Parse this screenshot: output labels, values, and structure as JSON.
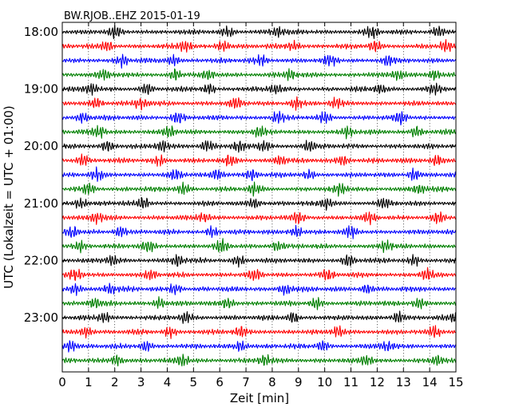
{
  "chart_data": {
    "type": "line",
    "title": "BW.RJOB..EHZ 2015-01-19",
    "xlabel": "Zeit  [min]",
    "ylabel": "UTC (Lokalzeit = UTC + 01:00)",
    "xlim": [
      0,
      15
    ],
    "x_ticks": [
      0,
      1,
      2,
      3,
      4,
      5,
      6,
      7,
      8,
      9,
      10,
      11,
      12,
      13,
      14,
      15
    ],
    "y_tick_labels": [
      "18:00",
      "19:00",
      "20:00",
      "21:00",
      "22:00",
      "23:00"
    ],
    "grid": "vertical dotted at each minute",
    "trace_colors": [
      "#000000",
      "#ff0000",
      "#0000ff",
      "#008000"
    ],
    "trace_count": 24,
    "trace_interval_minutes": 15,
    "start_time": "18:00",
    "end_time": "23:45",
    "event_minutes": [
      [
        2.0,
        6.3,
        8.2,
        11.8,
        14.3
      ],
      [
        1.7,
        4.7,
        6.1,
        8.8,
        11.9,
        14.6
      ],
      [
        2.3,
        4.2,
        7.6,
        10.2,
        12.4
      ],
      [
        1.6,
        4.3,
        5.6,
        8.7,
        12.8,
        14.2
      ],
      [
        1.1,
        3.2,
        5.6,
        8.1,
        12.1,
        14.2
      ],
      [
        1.3,
        3.0,
        6.6,
        8.9,
        10.4
      ],
      [
        0.8,
        4.4,
        8.2,
        10.0,
        12.9
      ],
      [
        1.4,
        4.1,
        7.5,
        10.9,
        13.5
      ],
      [
        1.7,
        3.8,
        5.5,
        6.7,
        7.7,
        9.4
      ],
      [
        0.8,
        3.7,
        6.4,
        8.3,
        10.7,
        14.3
      ],
      [
        1.3,
        4.3,
        5.9,
        7.2,
        9.4,
        13.4
      ],
      [
        1.0,
        4.6,
        7.3,
        10.6,
        13.6
      ],
      [
        0.7,
        3.1,
        7.3,
        10.1,
        12.3
      ],
      [
        1.3,
        5.4,
        9.0,
        11.7,
        14.3
      ],
      [
        0.4,
        2.2,
        5.7,
        8.9,
        11.0
      ],
      [
        0.7,
        3.3,
        6.1,
        8.2,
        12.3
      ],
      [
        1.9,
        4.4,
        6.7,
        10.9,
        13.4
      ],
      [
        0.5,
        3.4,
        7.3,
        10.1,
        13.9
      ],
      [
        0.5,
        1.8,
        4.3,
        8.5,
        11.6
      ],
      [
        1.2,
        3.7,
        6.3,
        9.7,
        13.6
      ],
      [
        1.6,
        4.7,
        8.8,
        12.8,
        15.0
      ],
      [
        0.9,
        4.1,
        6.8,
        10.5,
        14.2
      ],
      [
        0.3,
        3.2,
        6.8,
        9.9,
        12.4
      ],
      [
        2.1,
        4.6,
        7.7,
        11.6,
        14.3
      ]
    ]
  }
}
